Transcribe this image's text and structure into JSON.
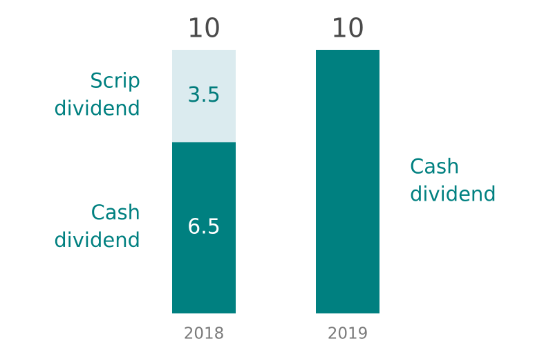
{
  "chart_data": {
    "type": "bar",
    "stacked": true,
    "categories": [
      "2018",
      "2019"
    ],
    "series": [
      {
        "name": "Cash dividend",
        "values": [
          6.5,
          10
        ],
        "color": "#008080",
        "label_color": "#ffffff",
        "show_values": [
          true,
          false
        ]
      },
      {
        "name": "Scrip dividend",
        "values": [
          3.5,
          0
        ],
        "color": "#dbebef",
        "label_color": "#007b7b",
        "show_values": [
          true,
          false
        ]
      }
    ],
    "totals": [
      10,
      10
    ],
    "side_labels": [
      {
        "lines": [
          "Scrip",
          "dividend"
        ],
        "category": "2018",
        "series": "Scrip dividend",
        "side": "left"
      },
      {
        "lines": [
          "Cash",
          "dividend"
        ],
        "category": "2018",
        "series": "Cash dividend",
        "side": "left"
      },
      {
        "lines": [
          "Cash",
          "dividend"
        ],
        "category": "2019",
        "series": "Cash dividend",
        "side": "right"
      }
    ],
    "label_color": "#008080",
    "ylim": [
      0,
      10
    ],
    "grid": false,
    "legend": "none"
  }
}
